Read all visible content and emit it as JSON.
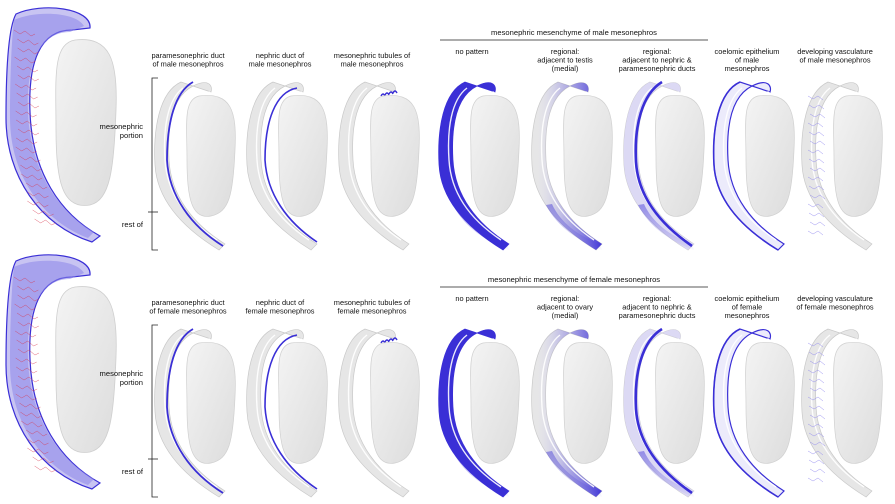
{
  "colors": {
    "stain": "#3a2fd6",
    "stain_light": "#8f86ee",
    "tissue": "#e6e6e6",
    "tissue_edge": "#c9c9c9",
    "vessel_red": "#d8334a"
  },
  "rows": [
    {
      "group_label": "mesonephric mesenchyme of male mesonephros",
      "side_labels": [
        "mesonephric",
        "portion",
        "rest of"
      ],
      "panels": [
        {
          "pattern": "pmd",
          "lines": [
            "paramesonephric duct",
            "of male mesonephros"
          ]
        },
        {
          "pattern": "nd",
          "lines": [
            "nephric duct of",
            "male mesonephros"
          ]
        },
        {
          "pattern": "tub",
          "lines": [
            "mesonephric tubules of",
            "male mesonephros"
          ]
        },
        {
          "pattern": "full",
          "lines": [
            "no pattern"
          ]
        },
        {
          "pattern": "medial",
          "lines": [
            "regional:",
            "adjacent to testis",
            "(medial)"
          ]
        },
        {
          "pattern": "ducts",
          "lines": [
            "regional:",
            "adjacent to nephric &",
            "paramesonephric ducts"
          ]
        },
        {
          "pattern": "coel",
          "lines": [
            "coelomic epithelium",
            "of male",
            "mesonephros"
          ]
        },
        {
          "pattern": "vasc",
          "lines": [
            "developing vasculature",
            "of male mesonephros"
          ]
        }
      ]
    },
    {
      "group_label": "mesonephric mesenchyme of female mesonephros",
      "side_labels": [
        "mesonephric",
        "portion",
        "rest of"
      ],
      "panels": [
        {
          "pattern": "pmd",
          "lines": [
            "paramesonephric duct",
            "of female mesonephros"
          ]
        },
        {
          "pattern": "nd",
          "lines": [
            "nephric duct of",
            "female mesonephros"
          ]
        },
        {
          "pattern": "tub",
          "lines": [
            "mesonephric tubules of",
            "female mesonephros"
          ]
        },
        {
          "pattern": "full",
          "lines": [
            "no pattern"
          ]
        },
        {
          "pattern": "medial",
          "lines": [
            "regional:",
            "adjacent to ovary",
            "(medial)"
          ]
        },
        {
          "pattern": "ducts",
          "lines": [
            "regional:",
            "adjacent to nephric &",
            "paramesonephric ducts"
          ]
        },
        {
          "pattern": "coel",
          "lines": [
            "coelomic epithelium",
            "of female",
            "mesonephros"
          ]
        },
        {
          "pattern": "vasc",
          "lines": [
            "developing vasculature",
            "of female mesonephros"
          ]
        }
      ]
    }
  ]
}
